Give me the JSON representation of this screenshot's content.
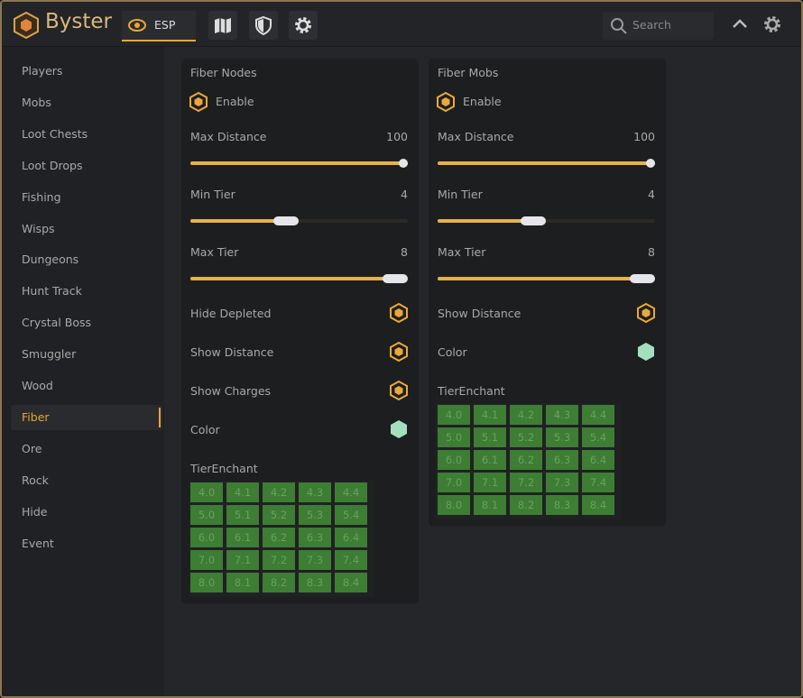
{
  "header": {
    "app_name": "Byster",
    "tab": "ESP",
    "search_placeholder": "Search"
  },
  "sidebar": {
    "items": [
      "Players",
      "Mobs",
      "Loot Chests",
      "Loot Drops",
      "Fishing",
      "Wisps",
      "Dungeons",
      "Hunt Track",
      "Crystal Boss",
      "Smuggler",
      "Wood",
      "Fiber",
      "Ore",
      "Rock",
      "Hide",
      "Event"
    ],
    "selected_index": 11
  },
  "panels": [
    {
      "title": "Fiber Nodes",
      "enable_label": "Enable",
      "sliders": [
        {
          "label": "Max Distance",
          "value": "100"
        },
        {
          "label": "Min Tier",
          "value": "4"
        },
        {
          "label": "Max Tier",
          "value": "8"
        }
      ],
      "toggles": [
        "Hide Depleted",
        "Show Distance",
        "Show Charges"
      ],
      "color_label": "Color",
      "grid_title": "TierEnchant",
      "grid": [
        [
          "4.0",
          "4.1",
          "4.2",
          "4.3",
          "4.4"
        ],
        [
          "5.0",
          "5.1",
          "5.2",
          "5.3",
          "5.4"
        ],
        [
          "6.0",
          "6.1",
          "6.2",
          "6.3",
          "6.4"
        ],
        [
          "7.0",
          "7.1",
          "7.2",
          "7.3",
          "7.4"
        ],
        [
          "8.0",
          "8.1",
          "8.2",
          "8.3",
          "8.4"
        ]
      ]
    },
    {
      "title": "Fiber Mobs",
      "enable_label": "Enable",
      "sliders": [
        {
          "label": "Max Distance",
          "value": "100"
        },
        {
          "label": "Min Tier",
          "value": "4"
        },
        {
          "label": "Max Tier",
          "value": "8"
        }
      ],
      "toggles": [
        "Show Distance"
      ],
      "color_label": "Color",
      "grid_title": "TierEnchant",
      "grid": [
        [
          "4.0",
          "4.1",
          "4.2",
          "4.3",
          "4.4"
        ],
        [
          "5.0",
          "5.1",
          "5.2",
          "5.3",
          "5.4"
        ],
        [
          "6.0",
          "6.1",
          "6.2",
          "6.3",
          "6.4"
        ],
        [
          "7.0",
          "7.1",
          "7.2",
          "7.3",
          "7.4"
        ],
        [
          "8.0",
          "8.1",
          "8.2",
          "8.3",
          "8.4"
        ]
      ]
    }
  ]
}
